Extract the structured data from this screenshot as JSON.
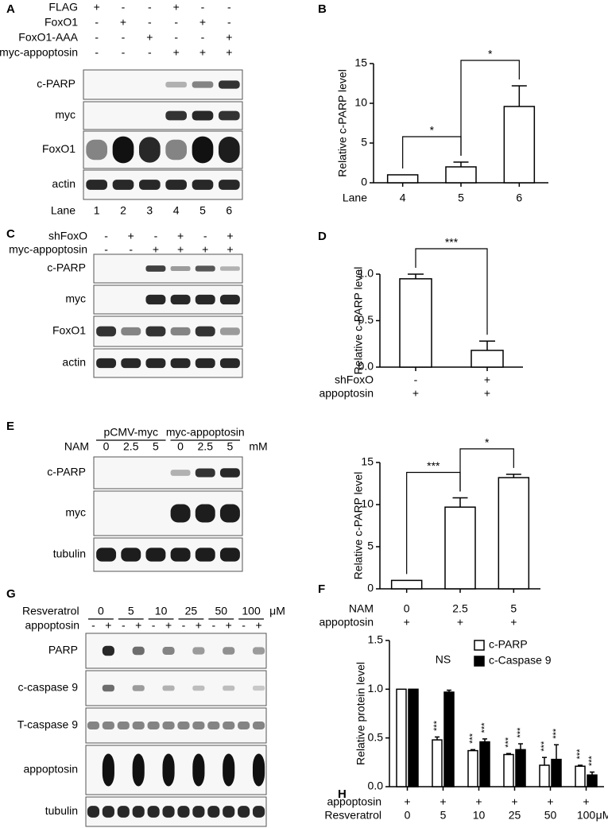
{
  "blots": [
    {
      "panel": "A",
      "conditions": [
        {
          "name": "FLAG",
          "values": [
            "+",
            "-",
            "-",
            "+",
            "-",
            "-"
          ]
        },
        {
          "name": "FoxO1",
          "values": [
            "-",
            "+",
            "-",
            "-",
            "+",
            "-"
          ]
        },
        {
          "name": "FoxO1-AAA",
          "values": [
            "-",
            "-",
            "+",
            "-",
            "-",
            "+"
          ]
        },
        {
          "name": "myc-appoptosin",
          "values": [
            "-",
            "-",
            "-",
            "+",
            "+",
            "+"
          ]
        }
      ],
      "rows": [
        "c-PARP",
        "myc",
        "FoxO1",
        "actin"
      ],
      "lane_label": "Lane",
      "lanes": [
        "1",
        "2",
        "3",
        "4",
        "5",
        "6"
      ]
    },
    {
      "panel": "C",
      "conditions": [
        {
          "name": "shFoxO",
          "values": [
            "-",
            "+",
            "-",
            "+",
            "-",
            "+"
          ]
        },
        {
          "name": "myc-appoptosin",
          "values": [
            "-",
            "-",
            "+",
            "+",
            "+",
            "+"
          ]
        }
      ],
      "rows": [
        "c-PARP",
        "myc",
        "FoxO1",
        "actin"
      ]
    },
    {
      "panel": "E",
      "groups": [
        "pCMV-myc",
        "myc-appoptosin"
      ],
      "conditions": [
        {
          "name": "NAM",
          "values": [
            "0",
            "2.5",
            "5",
            "0",
            "2.5",
            "5"
          ],
          "unit": "mM"
        }
      ],
      "rows": [
        "c-PARP",
        "myc",
        "tubulin"
      ]
    },
    {
      "panel": "G",
      "group_title": "Resveratrol",
      "groups": [
        "0",
        "5",
        "10",
        "25",
        "50",
        "100"
      ],
      "group_unit": "μM",
      "conditions": [
        {
          "name": "appoptosin",
          "values": [
            "-",
            "+",
            "-",
            "+",
            "-",
            "+",
            "-",
            "+",
            "-",
            "+",
            "-",
            "+"
          ]
        }
      ],
      "rows": [
        "PARP",
        "c-caspase 9",
        "T-caspase 9",
        "appoptosin",
        "tubulin"
      ]
    }
  ],
  "chart_data": [
    {
      "panel": "B",
      "type": "bar",
      "ylabel": "Relative c-PARP level",
      "label_rows": [
        {
          "name": "Lane",
          "values": [
            "4",
            "5",
            "6"
          ]
        }
      ],
      "values": [
        1,
        2,
        9.6
      ],
      "errors": [
        null,
        0.6,
        2.6
      ],
      "ylim": [
        0,
        15
      ],
      "yticks": [
        0,
        5,
        10,
        15
      ],
      "brackets": [
        {
          "between": [
            0,
            1
          ],
          "label": "*"
        },
        {
          "between": [
            1,
            2
          ],
          "label": "*"
        }
      ]
    },
    {
      "panel": "D",
      "type": "bar",
      "ylabel": "Relative c-PARP level",
      "label_rows": [
        {
          "name": "shFoxO",
          "values": [
            "-",
            "+"
          ]
        },
        {
          "name": "appoptosin",
          "values": [
            "+",
            "+"
          ]
        }
      ],
      "values": [
        0.95,
        0.18
      ],
      "errors": [
        0.05,
        0.1
      ],
      "ylim": [
        0,
        1
      ],
      "yticks": [
        {
          "value": 0,
          "label": "0.0"
        },
        0.5,
        {
          "value": 1,
          "label": "1.0"
        }
      ],
      "brackets": [
        {
          "between": [
            0,
            1
          ],
          "label": "***"
        }
      ]
    },
    {
      "panel": "F",
      "type": "bar",
      "ylabel": "Relative c-PARP level",
      "label_rows": [
        {
          "name": "NAM",
          "values": [
            "0",
            "2.5",
            "5"
          ]
        },
        {
          "name": "appoptosin",
          "values": [
            "+",
            "+",
            "+"
          ]
        }
      ],
      "values": [
        1,
        9.7,
        13.2
      ],
      "errors": [
        null,
        1.1,
        0.4
      ],
      "ylim": [
        0,
        15
      ],
      "yticks": [
        0,
        5,
        10,
        15
      ],
      "brackets": [
        {
          "between": [
            0,
            1
          ],
          "label": "***"
        },
        {
          "between": [
            1,
            2
          ],
          "label": "*"
        }
      ]
    },
    {
      "panel": "H",
      "type": "grouped_bar",
      "ylabel": "Relative protein level",
      "label_rows": [
        {
          "name": "appoptosin",
          "values": [
            "+",
            "+",
            "+",
            "+",
            "+",
            "+"
          ]
        },
        {
          "name": "Resveratrol",
          "values": [
            "0",
            "5",
            "10",
            "25",
            "50",
            "100"
          ],
          "unit": "μM"
        }
      ],
      "series": [
        {
          "name": "c-PARP",
          "color": "#ffffff",
          "values": [
            1,
            0.48,
            0.37,
            0.33,
            0.22,
            0.21
          ],
          "errors": [
            null,
            0.03,
            0.01,
            0.01,
            0.08,
            0.01
          ],
          "annotations": [
            null,
            "***",
            "***",
            "***",
            "***",
            "***"
          ]
        },
        {
          "name": "c-Caspase 9",
          "color": "#000000",
          "values": [
            1,
            0.97,
            0.46,
            0.38,
            0.28,
            0.12
          ],
          "errors": [
            null,
            0.02,
            0.03,
            0.06,
            0.15,
            0.03
          ],
          "annotations": [
            null,
            null,
            "***",
            "***",
            "***",
            "***"
          ]
        }
      ],
      "group_annotations": [
        null,
        "NS",
        null,
        null,
        null,
        null
      ],
      "ylim": [
        0,
        1.5
      ],
      "yticks": [
        {
          "value": 0,
          "label": "0.0"
        },
        0.5,
        {
          "value": 1,
          "label": "1.0"
        },
        1.5
      ],
      "legend": "top-right"
    }
  ]
}
